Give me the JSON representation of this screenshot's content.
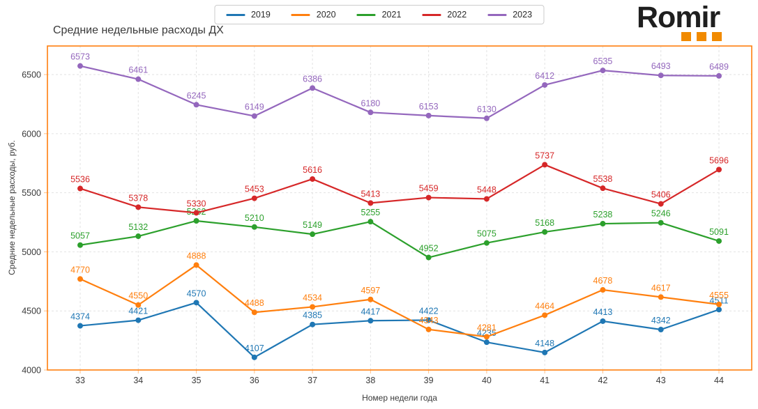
{
  "logo": {
    "text": "Romir",
    "text_color": "#1f1f1f",
    "dot_color": "#f18a00"
  },
  "chart_data": {
    "type": "line",
    "title": "Средние недельные расходы ДХ",
    "xlabel": "Номер недели года",
    "ylabel": "Средние недельные расходы, руб.",
    "x": [
      33,
      34,
      35,
      36,
      37,
      38,
      39,
      40,
      41,
      42,
      43,
      44
    ],
    "yticks": [
      4000,
      4500,
      5000,
      5500,
      6000,
      6500
    ],
    "ylim": [
      4000,
      6742
    ],
    "grid": true,
    "grid_style": "dashed",
    "legend_position": "top-center",
    "plot_border_color": "#ff7f0e",
    "series": [
      {
        "name": "2019",
        "color": "#1f77b4",
        "values": [
          4374,
          4421,
          4570,
          4107,
          4385,
          4417,
          4422,
          4235,
          4148,
          4413,
          4342,
          4511
        ]
      },
      {
        "name": "2020",
        "color": "#ff7f0e",
        "values": [
          4770,
          4550,
          4888,
          4488,
          4534,
          4597,
          4343,
          4281,
          4464,
          4678,
          4617,
          4555
        ]
      },
      {
        "name": "2021",
        "color": "#2ca02c",
        "values": [
          5057,
          5132,
          5262,
          5210,
          5149,
          5255,
          4952,
          5075,
          5168,
          5238,
          5246,
          5091
        ]
      },
      {
        "name": "2022",
        "color": "#d62728",
        "values": [
          5536,
          5378,
          5330,
          5453,
          5616,
          5413,
          5459,
          5448,
          5737,
          5538,
          5406,
          5696
        ]
      },
      {
        "name": "2023",
        "color": "#9467bd",
        "values": [
          6573,
          6461,
          6245,
          6149,
          6386,
          6180,
          6153,
          6130,
          6412,
          6535,
          6493,
          6489
        ]
      }
    ]
  }
}
